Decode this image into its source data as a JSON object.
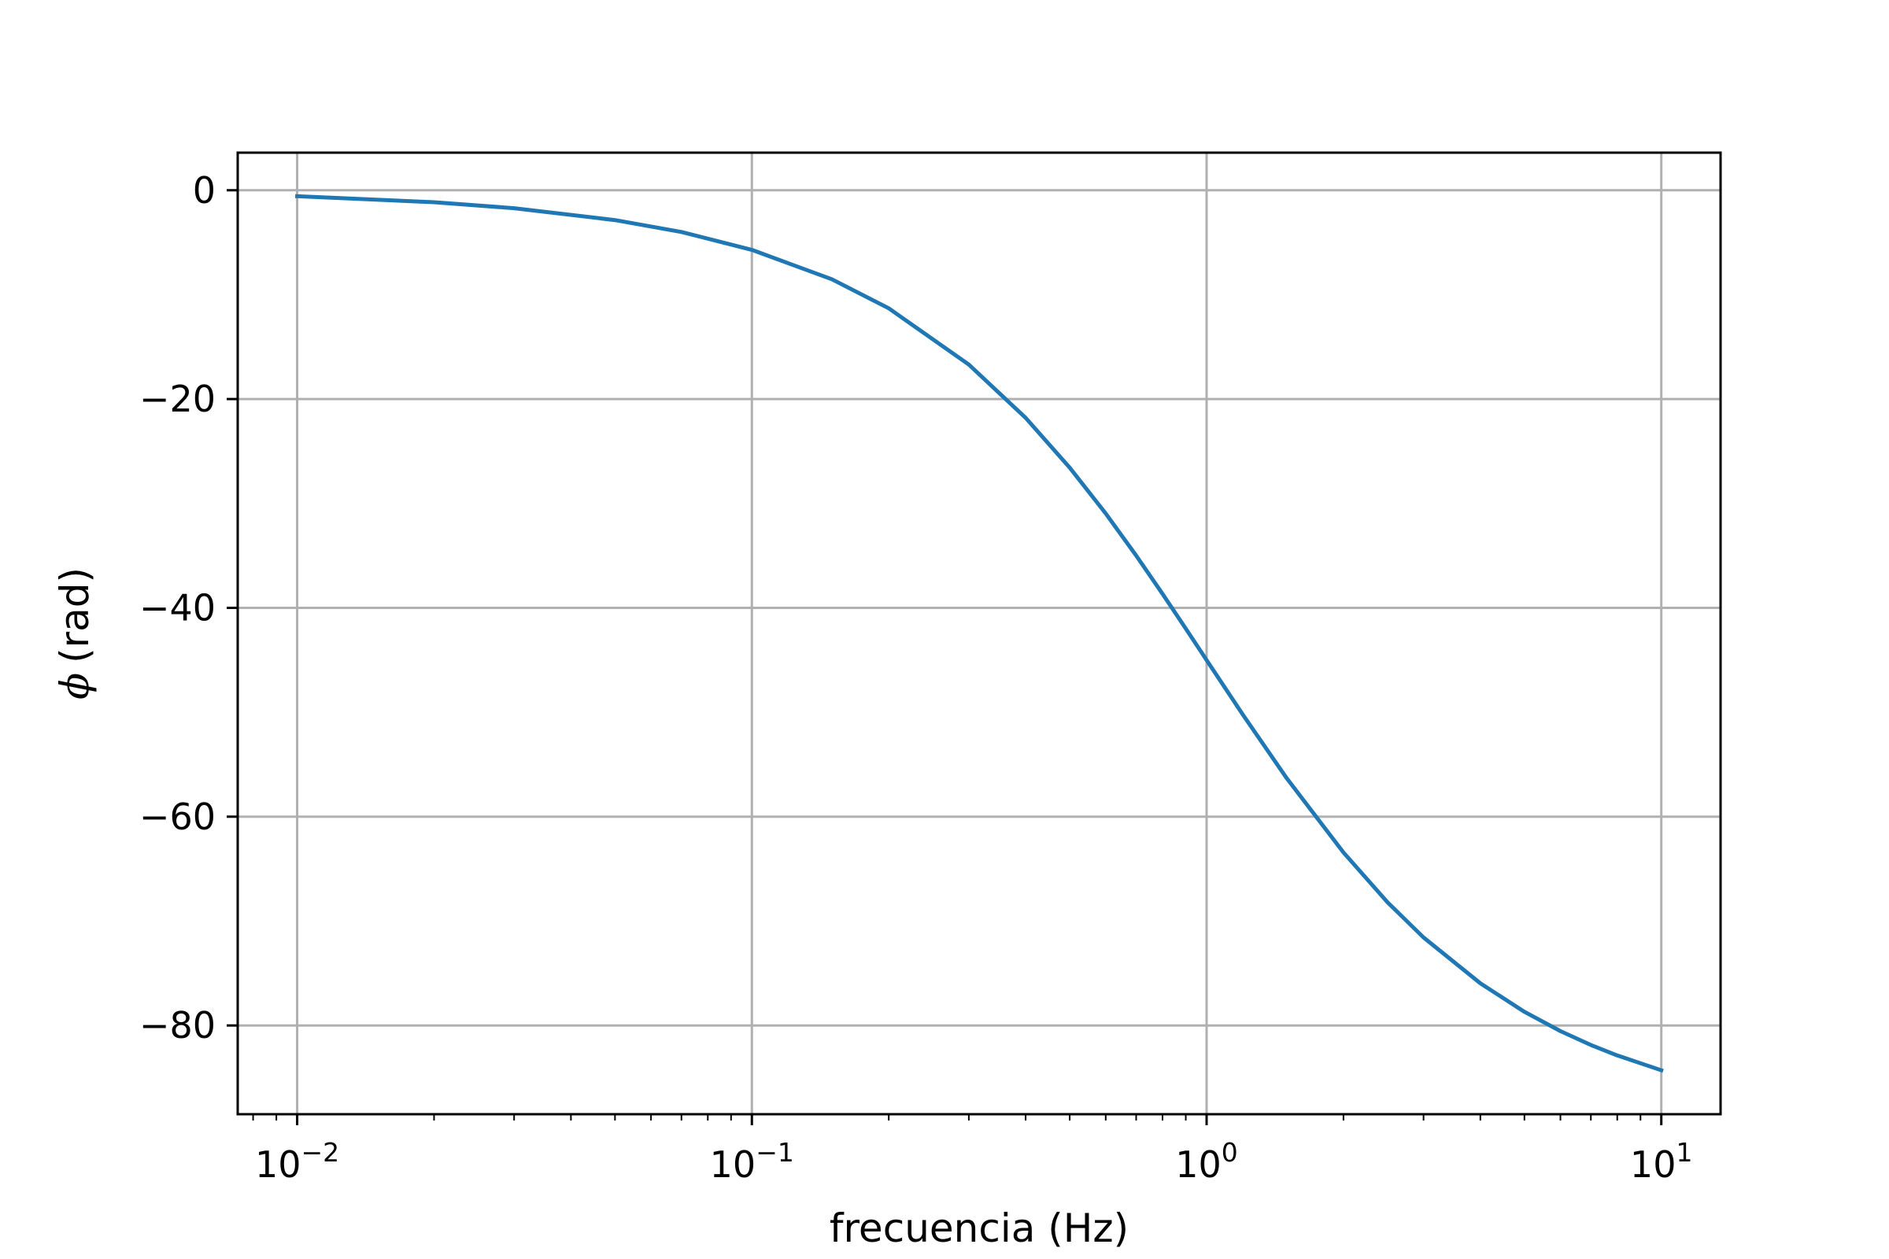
{
  "chart_data": {
    "type": "line",
    "xlabel": "frecuencia (Hz)",
    "ylabel_symbol": "ϕ",
    "ylabel_unit": "(rad)",
    "xscale": "log",
    "xlim": [
      0.0074,
      13.5
    ],
    "ylim": [
      -88.5,
      3.6
    ],
    "grid": true,
    "x_ticks": [
      {
        "value": 0.01,
        "base": "10",
        "exponent": "−2"
      },
      {
        "value": 0.1,
        "base": "10",
        "exponent": "−1"
      },
      {
        "value": 1,
        "base": "10",
        "exponent": "0"
      },
      {
        "value": 10,
        "base": "10",
        "exponent": "1"
      }
    ],
    "y_ticks": [
      {
        "value": 0,
        "label": "0"
      },
      {
        "value": -20,
        "label": "−20"
      },
      {
        "value": -40,
        "label": "−40"
      },
      {
        "value": -60,
        "label": "−60"
      },
      {
        "value": -80,
        "label": "−80"
      }
    ],
    "series": [
      {
        "color": "#1f77b4",
        "x": [
          0.01,
          0.02,
          0.03,
          0.05,
          0.07,
          0.1,
          0.15,
          0.2,
          0.3,
          0.4,
          0.5,
          0.6,
          0.7,
          0.8,
          0.9,
          1.0,
          1.2,
          1.5,
          2.0,
          2.5,
          3.0,
          4.0,
          5.0,
          6.0,
          7.0,
          8.0,
          10.0
        ],
        "y": [
          -0.57,
          -1.15,
          -1.72,
          -2.86,
          -4.0,
          -5.71,
          -8.53,
          -11.31,
          -16.7,
          -21.8,
          -26.57,
          -30.96,
          -34.99,
          -38.66,
          -41.99,
          -45.0,
          -50.19,
          -56.31,
          -63.43,
          -68.2,
          -71.57,
          -75.96,
          -78.69,
          -80.54,
          -81.87,
          -82.87,
          -84.29
        ]
      }
    ]
  }
}
